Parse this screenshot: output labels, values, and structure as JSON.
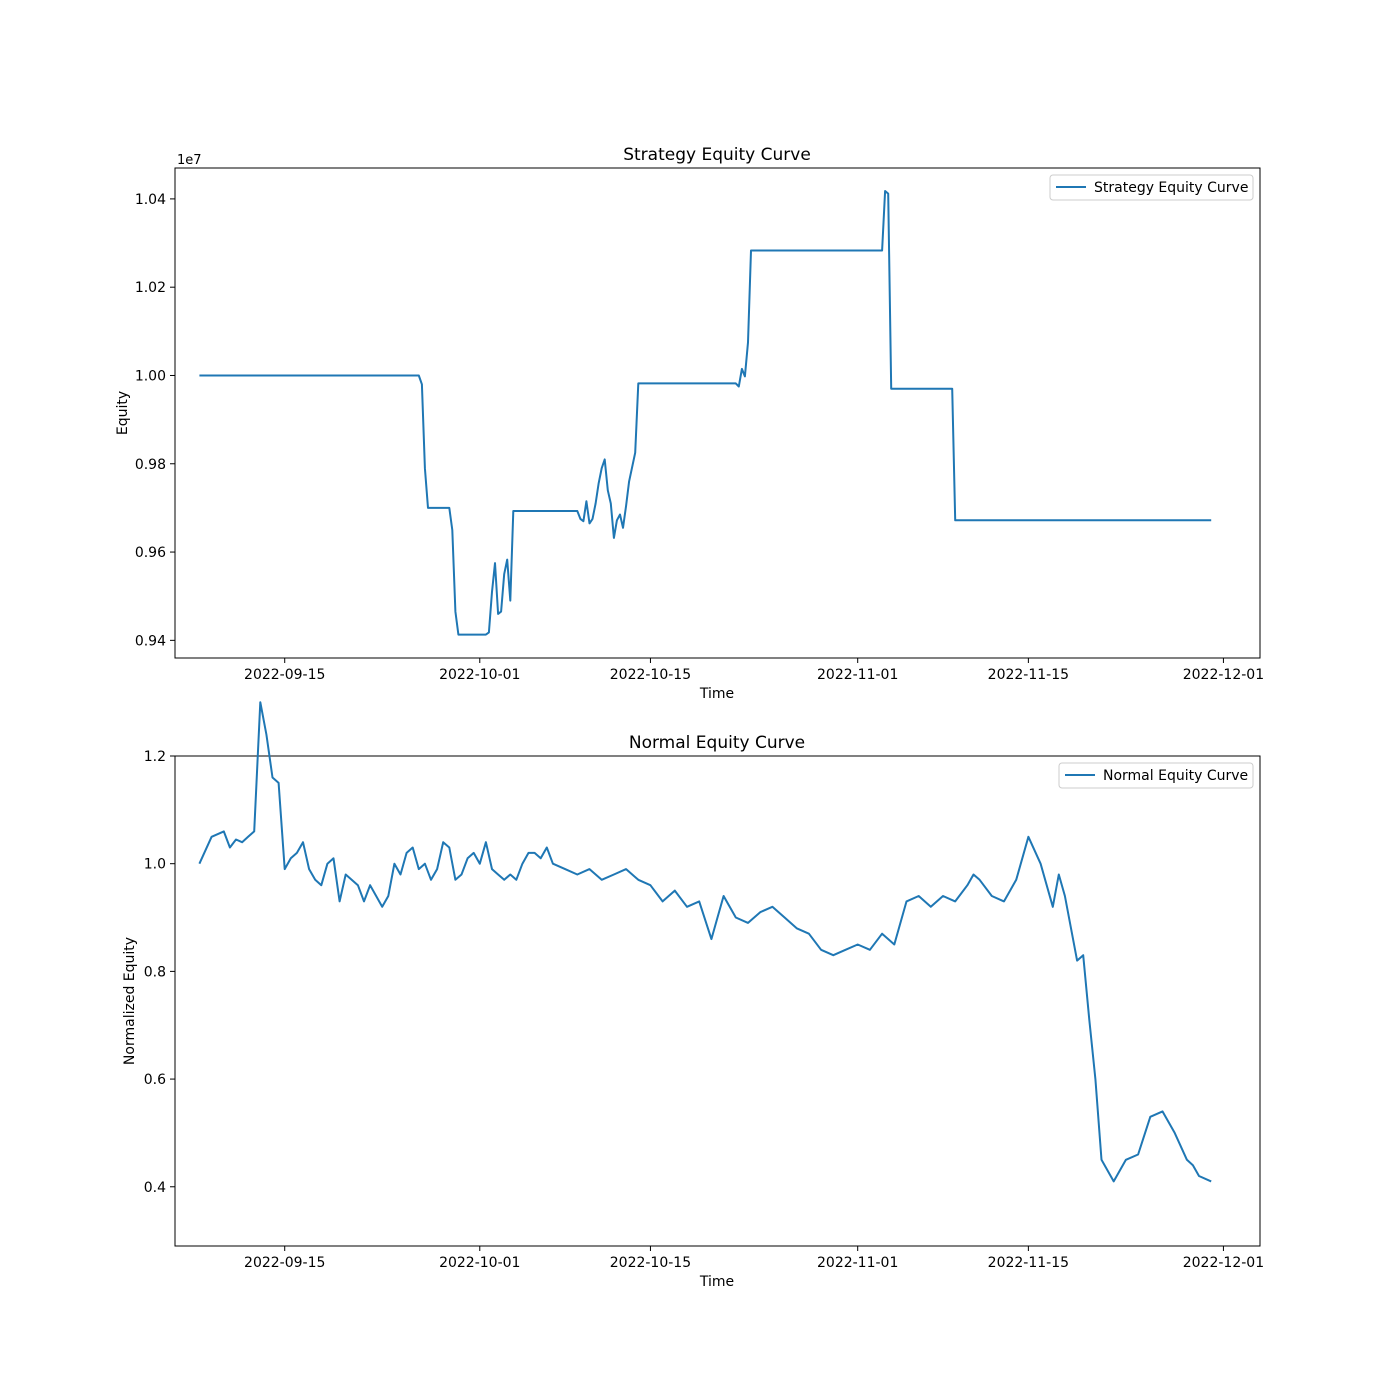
{
  "chart_data": [
    {
      "type": "line",
      "title": "Strategy Equity Curve",
      "xlabel": "Time",
      "ylabel": "Equity",
      "y_offset_label": "1e7",
      "xlim": [
        "2022-09-06",
        "2022-12-04"
      ],
      "ylim": [
        0.936,
        1.047
      ],
      "x_ticks": [
        "2022-09-15",
        "2022-10-01",
        "2022-10-15",
        "2022-11-01",
        "2022-11-15",
        "2022-12-01"
      ],
      "y_ticks": [
        "0.94",
        "0.96",
        "0.98",
        "1.00",
        "1.02",
        "1.04"
      ],
      "legend_position": "top-right",
      "series": [
        {
          "name": "Strategy Equity Curve",
          "color": "#1f77b4",
          "points": [
            [
              "2022-09-08T00:00",
              1.0
            ],
            [
              "2022-09-26T00:00",
              1.0
            ],
            [
              "2022-09-26T06:00",
              0.998
            ],
            [
              "2022-09-26T12:00",
              0.979
            ],
            [
              "2022-09-26T18:00",
              0.97
            ],
            [
              "2022-09-28T12:00",
              0.97
            ],
            [
              "2022-09-28T18:00",
              0.965
            ],
            [
              "2022-09-29T00:00",
              0.9465
            ],
            [
              "2022-09-29T06:00",
              0.9413
            ],
            [
              "2022-10-01T12:00",
              0.9413
            ],
            [
              "2022-10-01T18:00",
              0.9418
            ],
            [
              "2022-10-02T00:00",
              0.951
            ],
            [
              "2022-10-02T06:00",
              0.9575
            ],
            [
              "2022-10-02T12:00",
              0.946
            ],
            [
              "2022-10-02T18:00",
              0.9465
            ],
            [
              "2022-10-03T00:00",
              0.955
            ],
            [
              "2022-10-03T06:00",
              0.9583
            ],
            [
              "2022-10-03T12:00",
              0.949
            ],
            [
              "2022-10-03T18:00",
              0.9693
            ],
            [
              "2022-10-09T00:00",
              0.9693
            ],
            [
              "2022-10-09T06:00",
              0.9675
            ],
            [
              "2022-10-09T12:00",
              0.967
            ],
            [
              "2022-10-09T18:00",
              0.9715
            ],
            [
              "2022-10-10T00:00",
              0.9665
            ],
            [
              "2022-10-10T06:00",
              0.9675
            ],
            [
              "2022-10-10T12:00",
              0.971
            ],
            [
              "2022-10-10T18:00",
              0.9755
            ],
            [
              "2022-10-11T00:00",
              0.979
            ],
            [
              "2022-10-11T06:00",
              0.981
            ],
            [
              "2022-10-11T12:00",
              0.974
            ],
            [
              "2022-10-11T18:00",
              0.971
            ],
            [
              "2022-10-12T00:00",
              0.9632
            ],
            [
              "2022-10-12T06:00",
              0.9672
            ],
            [
              "2022-10-12T12:00",
              0.9685
            ],
            [
              "2022-10-12T18:00",
              0.9655
            ],
            [
              "2022-10-13T00:00",
              0.9705
            ],
            [
              "2022-10-13T06:00",
              0.976
            ],
            [
              "2022-10-13T18:00",
              0.9825
            ],
            [
              "2022-10-14T00:00",
              0.9982
            ],
            [
              "2022-10-22T00:00",
              0.9982
            ],
            [
              "2022-10-22T06:00",
              0.9975
            ],
            [
              "2022-10-22T12:00",
              1.0015
            ],
            [
              "2022-10-22T18:00",
              0.9998
            ],
            [
              "2022-10-23T00:00",
              1.0075
            ],
            [
              "2022-10-23T06:00",
              1.0283
            ],
            [
              "2022-11-03T00:00",
              1.0283
            ],
            [
              "2022-11-03T06:00",
              1.0418
            ],
            [
              "2022-11-03T12:00",
              1.0412
            ],
            [
              "2022-11-03T18:00",
              0.997
            ],
            [
              "2022-11-08T18:00",
              0.997
            ],
            [
              "2022-11-09T00:00",
              0.9672
            ],
            [
              "2022-11-30T00:00",
              0.9672
            ]
          ]
        }
      ]
    },
    {
      "type": "line",
      "title": "Normal Equity Curve",
      "xlabel": "Time",
      "ylabel": "Normalized Equity",
      "xlim": [
        "2022-09-06",
        "2022-12-04"
      ],
      "ylim": [
        0.29,
        1.2
      ],
      "x_ticks": [
        "2022-09-15",
        "2022-10-01",
        "2022-10-15",
        "2022-11-01",
        "2022-11-15",
        "2022-12-01"
      ],
      "y_ticks": [
        "0.4",
        "0.6",
        "0.8",
        "1.0",
        "1.2"
      ],
      "legend_position": "top-right",
      "series": [
        {
          "name": "Normal Equity Curve",
          "color": "#1f77b4",
          "points": [
            [
              "2022-09-08",
              1.0
            ],
            [
              "2022-09-09",
              1.05
            ],
            [
              "2022-09-10",
              1.06
            ],
            [
              "2022-09-10T12:00",
              1.03
            ],
            [
              "2022-09-11",
              1.045
            ],
            [
              "2022-09-11T12:00",
              1.04
            ],
            [
              "2022-09-12",
              1.05
            ],
            [
              "2022-09-12T12:00",
              1.06
            ],
            [
              "2022-09-13",
              1.3
            ],
            [
              "2022-09-13T12:00",
              1.24
            ],
            [
              "2022-09-14",
              1.16
            ],
            [
              "2022-09-14T12:00",
              1.15
            ],
            [
              "2022-09-15",
              0.99
            ],
            [
              "2022-09-15T12:00",
              1.01
            ],
            [
              "2022-09-16",
              1.02
            ],
            [
              "2022-09-16T12:00",
              1.04
            ],
            [
              "2022-09-17",
              0.99
            ],
            [
              "2022-09-17T12:00",
              0.97
            ],
            [
              "2022-09-18",
              0.96
            ],
            [
              "2022-09-18T12:00",
              1.0
            ],
            [
              "2022-09-19",
              1.01
            ],
            [
              "2022-09-19T12:00",
              0.93
            ],
            [
              "2022-09-20",
              0.98
            ],
            [
              "2022-09-21",
              0.96
            ],
            [
              "2022-09-21T12:00",
              0.93
            ],
            [
              "2022-09-22",
              0.96
            ],
            [
              "2022-09-23",
              0.92
            ],
            [
              "2022-09-23T12:00",
              0.94
            ],
            [
              "2022-09-24",
              1.0
            ],
            [
              "2022-09-24T12:00",
              0.98
            ],
            [
              "2022-09-25",
              1.02
            ],
            [
              "2022-09-25T12:00",
              1.03
            ],
            [
              "2022-09-26",
              0.99
            ],
            [
              "2022-09-26T12:00",
              1.0
            ],
            [
              "2022-09-27",
              0.97
            ],
            [
              "2022-09-27T12:00",
              0.99
            ],
            [
              "2022-09-28",
              1.04
            ],
            [
              "2022-09-28T12:00",
              1.03
            ],
            [
              "2022-09-29",
              0.97
            ],
            [
              "2022-09-29T12:00",
              0.98
            ],
            [
              "2022-09-30",
              1.01
            ],
            [
              "2022-09-30T12:00",
              1.02
            ],
            [
              "2022-10-01",
              1.0
            ],
            [
              "2022-10-01T12:00",
              1.04
            ],
            [
              "2022-10-02",
              0.99
            ],
            [
              "2022-10-02T12:00",
              0.98
            ],
            [
              "2022-10-03",
              0.97
            ],
            [
              "2022-10-03T12:00",
              0.98
            ],
            [
              "2022-10-04",
              0.97
            ],
            [
              "2022-10-04T12:00",
              1.0
            ],
            [
              "2022-10-05",
              1.02
            ],
            [
              "2022-10-05T12:00",
              1.02
            ],
            [
              "2022-10-06",
              1.01
            ],
            [
              "2022-10-06T12:00",
              1.03
            ],
            [
              "2022-10-07",
              1.0
            ],
            [
              "2022-10-08",
              0.99
            ],
            [
              "2022-10-09",
              0.98
            ],
            [
              "2022-10-10",
              0.99
            ],
            [
              "2022-10-11",
              0.97
            ],
            [
              "2022-10-12",
              0.98
            ],
            [
              "2022-10-13",
              0.99
            ],
            [
              "2022-10-14",
              0.97
            ],
            [
              "2022-10-15",
              0.96
            ],
            [
              "2022-10-16",
              0.93
            ],
            [
              "2022-10-17",
              0.95
            ],
            [
              "2022-10-18",
              0.92
            ],
            [
              "2022-10-19",
              0.93
            ],
            [
              "2022-10-20",
              0.86
            ],
            [
              "2022-10-20T12:00",
              0.9
            ],
            [
              "2022-10-21",
              0.94
            ],
            [
              "2022-10-21T12:00",
              0.92
            ],
            [
              "2022-10-22",
              0.9
            ],
            [
              "2022-10-23",
              0.89
            ],
            [
              "2022-10-24",
              0.91
            ],
            [
              "2022-10-25",
              0.92
            ],
            [
              "2022-10-26",
              0.9
            ],
            [
              "2022-10-27",
              0.88
            ],
            [
              "2022-10-28",
              0.87
            ],
            [
              "2022-10-29",
              0.84
            ],
            [
              "2022-10-30",
              0.83
            ],
            [
              "2022-10-31",
              0.84
            ],
            [
              "2022-11-01",
              0.85
            ],
            [
              "2022-11-02",
              0.84
            ],
            [
              "2022-11-03",
              0.87
            ],
            [
              "2022-11-04",
              0.85
            ],
            [
              "2022-11-05",
              0.93
            ],
            [
              "2022-11-06",
              0.94
            ],
            [
              "2022-11-07",
              0.92
            ],
            [
              "2022-11-08",
              0.94
            ],
            [
              "2022-11-09",
              0.93
            ],
            [
              "2022-11-10",
              0.96
            ],
            [
              "2022-11-10T12:00",
              0.98
            ],
            [
              "2022-11-11",
              0.97
            ],
            [
              "2022-11-12",
              0.94
            ],
            [
              "2022-11-13",
              0.93
            ],
            [
              "2022-11-14",
              0.97
            ],
            [
              "2022-11-15",
              1.05
            ],
            [
              "2022-11-16",
              1.0
            ],
            [
              "2022-11-17",
              0.92
            ],
            [
              "2022-11-17T12:00",
              0.98
            ],
            [
              "2022-11-18",
              0.94
            ],
            [
              "2022-11-19",
              0.82
            ],
            [
              "2022-11-19T12:00",
              0.83
            ],
            [
              "2022-11-20",
              0.71
            ],
            [
              "2022-11-20T12:00",
              0.6
            ],
            [
              "2022-11-21",
              0.45
            ],
            [
              "2022-11-22",
              0.41
            ],
            [
              "2022-11-23",
              0.45
            ],
            [
              "2022-11-24",
              0.46
            ],
            [
              "2022-11-25",
              0.53
            ],
            [
              "2022-11-26",
              0.54
            ],
            [
              "2022-11-27",
              0.5
            ],
            [
              "2022-11-28",
              0.45
            ],
            [
              "2022-11-28T12:00",
              0.44
            ],
            [
              "2022-11-29",
              0.42
            ],
            [
              "2022-11-30",
              0.41
            ]
          ]
        }
      ]
    }
  ]
}
